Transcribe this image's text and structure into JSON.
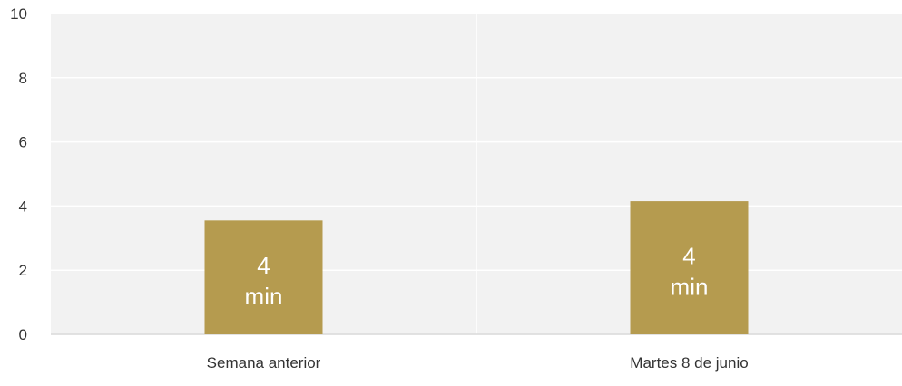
{
  "chart_data": {
    "type": "bar",
    "categories": [
      "Semana anterior",
      "Martes 8 de junio"
    ],
    "values": [
      3.55,
      4.15
    ],
    "data_labels": [
      {
        "value": "4",
        "unit": "min"
      },
      {
        "value": "4",
        "unit": "min"
      }
    ],
    "title": "",
    "xlabel": "",
    "ylabel": "",
    "ylim": [
      0,
      10
    ],
    "yticks": [
      "0",
      "2",
      "4",
      "6",
      "8",
      "10"
    ],
    "grid": true,
    "legend": "none",
    "colors": {
      "bar": "#b59b4f",
      "plot_background": "#f2f2f2",
      "gridline": "#ffffff",
      "axis_line": "#d9d9d9",
      "text": "#333333",
      "data_label": "#ffffff"
    }
  }
}
